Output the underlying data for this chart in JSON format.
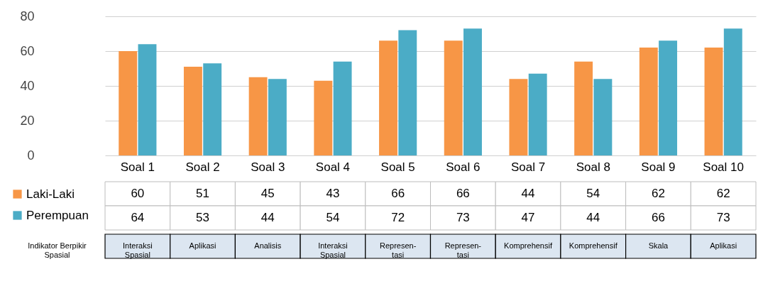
{
  "chart_data": {
    "type": "bar",
    "categories": [
      "Soal 1",
      "Soal 2",
      "Soal 3",
      "Soal 4",
      "Soal 5",
      "Soal 6",
      "Soal 7",
      "Soal 8",
      "Soal 9",
      "Soal 10"
    ],
    "series": [
      {
        "name": "Laki-Laki",
        "color": "#f79646",
        "values": [
          60,
          51,
          45,
          43,
          66,
          66,
          44,
          54,
          62,
          62
        ]
      },
      {
        "name": "Perempuan",
        "color": "#4bacc6",
        "values": [
          64,
          53,
          44,
          54,
          72,
          73,
          47,
          44,
          66,
          73
        ]
      }
    ],
    "ylim": [
      0,
      80
    ],
    "yticks": [
      0,
      20,
      40,
      60,
      80
    ],
    "grid": "y",
    "legend": "bottom left",
    "data_labels": true,
    "annotations": [
      "Indikator Berpikir Spasial",
      "Interaksi Spasial",
      "Aplikasi",
      "Analisis",
      "Interaksi Spasial",
      "Represen-tasi",
      "Represen-tasi",
      "Komprehensif",
      "Komprehensif",
      "Skala",
      "Aplikasi"
    ]
  }
}
